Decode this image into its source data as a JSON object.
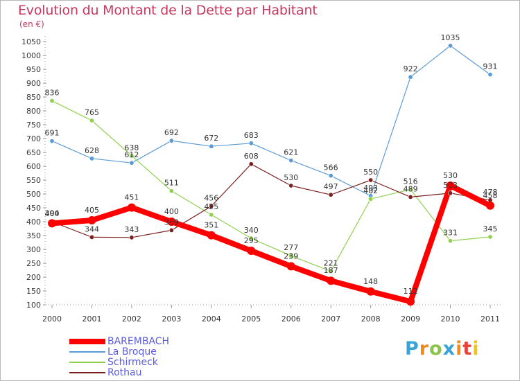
{
  "header": {
    "title": "Evolution du Montant de la Dette par Habitant",
    "unit": "(en €)"
  },
  "logo": {
    "text": "Proxiti",
    "letters": [
      "P",
      "r",
      "o",
      "x",
      "i",
      "t",
      "i"
    ],
    "colors": [
      "#3aa3d6",
      "#f08a1c",
      "#8bc34a",
      "#3aa3d6",
      "#f08a1c",
      "#e7413b",
      "#f2c318"
    ]
  },
  "chart_data": {
    "type": "line",
    "title": "Evolution du Montant de la Dette par Habitant",
    "subtitle": "(en €)",
    "xlabel": "",
    "ylabel": "",
    "x": [
      "2000",
      "2001",
      "2002",
      "2003",
      "2004",
      "2005",
      "2006",
      "2007",
      "2008",
      "2009",
      "2010",
      "2011"
    ],
    "ylim": [
      100,
      1050
    ],
    "yticks": [
      100,
      150,
      200,
      250,
      300,
      350,
      400,
      450,
      500,
      550,
      600,
      650,
      700,
      750,
      800,
      850,
      900,
      950,
      1000,
      1050
    ],
    "grid": false,
    "legend": "bottom-left",
    "series": [
      {
        "name": "BAREMBACH",
        "color": "#ff0000",
        "values": [
          394,
          405,
          451,
          400,
          351,
          295,
          239,
          187,
          148,
          112,
          530,
          458
        ],
        "labels": [
          "394",
          "405",
          "451",
          "400",
          "351",
          "295",
          "239",
          "187",
          "148",
          "112",
          "530",
          "458"
        ]
      },
      {
        "name": "La Broque",
        "color": "#5b9bd5",
        "values": [
          691,
          628,
          612,
          692,
          672,
          683,
          621,
          566,
          493,
          922,
          1035,
          931
        ],
        "labels": [
          "691",
          "628",
          "612",
          "692",
          "672",
          "683",
          "621",
          "566",
          "493",
          "922",
          "1035",
          "931"
        ]
      },
      {
        "name": "Schirmeck",
        "color": "#8fd14f",
        "values": [
          836,
          765,
          638,
          511,
          425,
          340,
          277,
          221,
          482,
          516,
          331,
          345
        ],
        "labels": [
          "836",
          "765",
          "638",
          "511",
          "425",
          "340",
          "277",
          "221",
          "482",
          "516",
          "331",
          "345"
        ]
      },
      {
        "name": "Rothau",
        "color": "#7b1f1f",
        "values": [
          400,
          344,
          343,
          369,
          456,
          608,
          530,
          497,
          550,
          489,
          503,
          478
        ],
        "labels": [
          "400",
          "344",
          "343",
          "369",
          "456",
          "608",
          "530",
          "497",
          "550",
          "489",
          "503",
          "478"
        ]
      }
    ]
  }
}
